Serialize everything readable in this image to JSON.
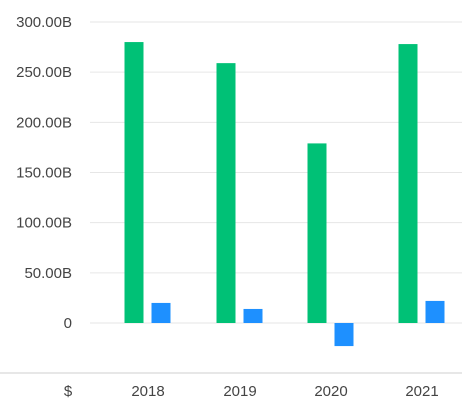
{
  "chart_data": {
    "type": "bar",
    "categories": [
      "2018",
      "2019",
      "2020",
      "2021"
    ],
    "series": [
      {
        "values": [
          280,
          259,
          179,
          278
        ],
        "color": "#00c176"
      },
      {
        "values": [
          20,
          14,
          -23,
          22
        ],
        "color": "#1e90ff"
      }
    ],
    "y_ticks": [
      0,
      50,
      100,
      150,
      200,
      250,
      300
    ],
    "y_tick_labels": [
      "0",
      "50.00B",
      "100.00B",
      "150.00B",
      "200.00B",
      "250.00B",
      "300.00B"
    ],
    "ylim": [
      -30,
      300
    ],
    "currency_label": "$",
    "grid": true,
    "gridline_color": "#e6e6e6"
  }
}
